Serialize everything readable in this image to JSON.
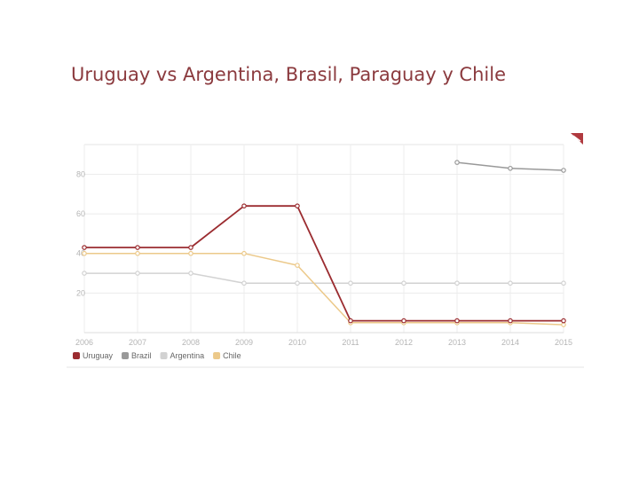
{
  "title": "Uruguay vs Argentina, Brasil, Paraguay y Chile",
  "chart_data": {
    "type": "line",
    "x": [
      "2006",
      "2007",
      "2008",
      "2009",
      "2010",
      "2011",
      "2012",
      "2013",
      "2014",
      "2015"
    ],
    "y_ticks": [
      "80",
      "60",
      "40",
      "20"
    ],
    "ylim": [
      0,
      95
    ],
    "grid": true,
    "legend_position": "bottom-left",
    "series": [
      {
        "name": "Brazil",
        "color": "#999999",
        "values": [
          null,
          null,
          null,
          null,
          null,
          null,
          null,
          86,
          83,
          82
        ]
      },
      {
        "name": "Argentina",
        "color": "#d2d2d2",
        "values": [
          30,
          30,
          30,
          25,
          25,
          25,
          25,
          25,
          25,
          25
        ]
      },
      {
        "name": "Chile",
        "color": "#ecc98a",
        "values": [
          40,
          40,
          40,
          40,
          34,
          5,
          5,
          5,
          5,
          4
        ]
      },
      {
        "name": "Uruguay",
        "color": "#9b2c30",
        "values": [
          43,
          43,
          43,
          64,
          64,
          6,
          6,
          6,
          6,
          6
        ]
      }
    ],
    "legend": [
      {
        "name": "Uruguay",
        "color": "#9b2c30"
      },
      {
        "name": "Brazil",
        "color": "#999999"
      },
      {
        "name": "Argentina",
        "color": "#d2d2d2"
      },
      {
        "name": "Chile",
        "color": "#ecc98a"
      }
    ]
  }
}
